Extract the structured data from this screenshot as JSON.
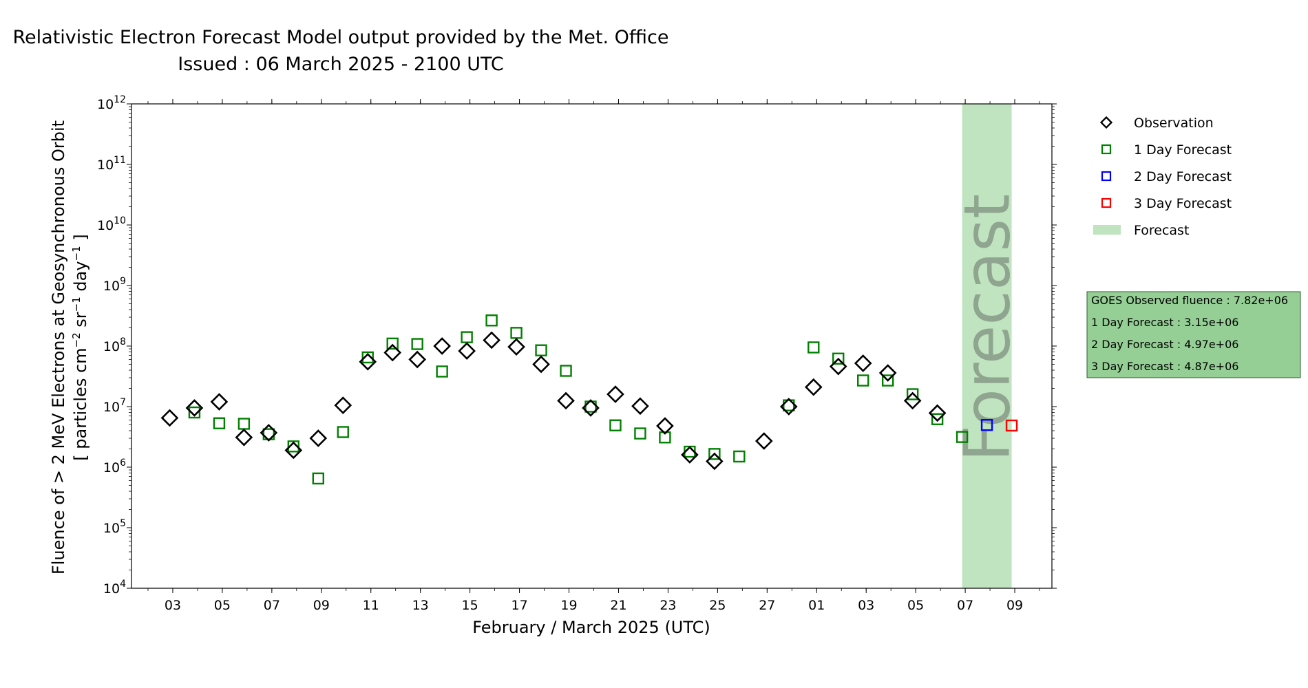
{
  "chart_data": {
    "type": "scatter",
    "title": "Relativistic Electron Forecast Model output provided by the Met. Office",
    "subtitle": "Issued : 06 March 2025 - 2100 UTC",
    "xlabel": "February / March 2025 (UTC)",
    "ylabel_line1": "Fluence of > 2 MeV Electrons at Geosynchronous Orbit",
    "ylabel_line2_parts": [
      "[ particles cm",
      "−2",
      " sr",
      "−1",
      " day",
      "−1",
      " ]"
    ],
    "y_scale": "log",
    "ylim": [
      10000,
      1000000000000
    ],
    "xlim": [
      "2025-02-01T08:00",
      "2025-03-10T12:00"
    ],
    "x_ticks": [
      {
        "date": "2025-02-03",
        "label": "03"
      },
      {
        "date": "2025-02-05",
        "label": "05"
      },
      {
        "date": "2025-02-07",
        "label": "07"
      },
      {
        "date": "2025-02-09",
        "label": "09"
      },
      {
        "date": "2025-02-11",
        "label": "11"
      },
      {
        "date": "2025-02-13",
        "label": "13"
      },
      {
        "date": "2025-02-15",
        "label": "15"
      },
      {
        "date": "2025-02-17",
        "label": "17"
      },
      {
        "date": "2025-02-19",
        "label": "19"
      },
      {
        "date": "2025-02-21",
        "label": "21"
      },
      {
        "date": "2025-02-23",
        "label": "23"
      },
      {
        "date": "2025-02-25",
        "label": "25"
      },
      {
        "date": "2025-02-27",
        "label": "27"
      },
      {
        "date": "2025-03-01",
        "label": "01"
      },
      {
        "date": "2025-03-03",
        "label": "03"
      },
      {
        "date": "2025-03-05",
        "label": "05"
      },
      {
        "date": "2025-03-07",
        "label": "07"
      },
      {
        "date": "2025-03-09",
        "label": "09"
      }
    ],
    "y_ticks": [
      {
        "value": 10000,
        "base": "10",
        "exp": "4"
      },
      {
        "value": 100000,
        "base": "10",
        "exp": "5"
      },
      {
        "value": 1000000,
        "base": "10",
        "exp": "6"
      },
      {
        "value": 10000000,
        "base": "10",
        "exp": "7"
      },
      {
        "value": 100000000,
        "base": "10",
        "exp": "8"
      },
      {
        "value": 1000000000,
        "base": "10",
        "exp": "9"
      },
      {
        "value": 10000000000,
        "base": "10",
        "exp": "10"
      },
      {
        "value": 100000000000,
        "base": "10",
        "exp": "11"
      },
      {
        "value": 1000000000000,
        "base": "10",
        "exp": "12"
      }
    ],
    "forecast_band": {
      "start": "2025-03-06T21:00",
      "end": "2025-03-08T21:00",
      "color": "#c0e4bf",
      "text": "Forecast",
      "text_color": "#8fa58f"
    },
    "series": [
      {
        "name": "Observation",
        "marker": "diamond",
        "color": "#000000",
        "points": [
          [
            "2025-02-02T21:00",
            6500000
          ],
          [
            "2025-02-03T21:00",
            9500000
          ],
          [
            "2025-02-04T21:00",
            12000000
          ],
          [
            "2025-02-05T21:00",
            3100000
          ],
          [
            "2025-02-06T21:00",
            3700000
          ],
          [
            "2025-02-07T21:00",
            1900000
          ],
          [
            "2025-02-08T21:00",
            3000000
          ],
          [
            "2025-02-09T21:00",
            10500000
          ],
          [
            "2025-02-10T21:00",
            55000000
          ],
          [
            "2025-02-11T21:00",
            78000000
          ],
          [
            "2025-02-12T21:00",
            60000000
          ],
          [
            "2025-02-13T21:00",
            100000000
          ],
          [
            "2025-02-14T21:00",
            83000000
          ],
          [
            "2025-02-15T21:00",
            125000000
          ],
          [
            "2025-02-16T21:00",
            97000000
          ],
          [
            "2025-02-17T21:00",
            50000000
          ],
          [
            "2025-02-18T21:00",
            12500000
          ],
          [
            "2025-02-19T21:00",
            9500000
          ],
          [
            "2025-02-20T21:00",
            16000000
          ],
          [
            "2025-02-21T21:00",
            10200000
          ],
          [
            "2025-02-22T21:00",
            4800000
          ],
          [
            "2025-02-23T21:00",
            1600000
          ],
          [
            "2025-02-24T21:00",
            1250000
          ],
          [
            "2025-02-26T21:00",
            2700000
          ],
          [
            "2025-02-27T21:00",
            10000000
          ],
          [
            "2025-02-28T21:00",
            21000000
          ],
          [
            "2025-03-01T21:00",
            46000000
          ],
          [
            "2025-03-02T21:00",
            52000000
          ],
          [
            "2025-03-03T21:00",
            36000000
          ],
          [
            "2025-03-04T21:00",
            12500000
          ],
          [
            "2025-03-05T21:00",
            7820000
          ]
        ]
      },
      {
        "name": "1 Day Forecast",
        "marker": "square",
        "color": "#008000",
        "points": [
          [
            "2025-02-03T21:00",
            8000000
          ],
          [
            "2025-02-04T21:00",
            5300000
          ],
          [
            "2025-02-05T21:00",
            5200000
          ],
          [
            "2025-02-06T21:00",
            3500000
          ],
          [
            "2025-02-07T21:00",
            2200000
          ],
          [
            "2025-02-08T21:00",
            650000
          ],
          [
            "2025-02-09T21:00",
            3800000
          ],
          [
            "2025-02-10T21:00",
            65000000
          ],
          [
            "2025-02-11T21:00",
            110000000
          ],
          [
            "2025-02-12T21:00",
            108000000
          ],
          [
            "2025-02-13T21:00",
            38000000
          ],
          [
            "2025-02-14T21:00",
            140000000
          ],
          [
            "2025-02-15T21:00",
            265000000
          ],
          [
            "2025-02-16T21:00",
            165000000
          ],
          [
            "2025-02-17T21:00",
            85000000
          ],
          [
            "2025-02-18T21:00",
            39000000
          ],
          [
            "2025-02-19T21:00",
            10000000
          ],
          [
            "2025-02-20T21:00",
            4900000
          ],
          [
            "2025-02-21T21:00",
            3600000
          ],
          [
            "2025-02-22T21:00",
            3100000
          ],
          [
            "2025-02-23T21:00",
            1800000
          ],
          [
            "2025-02-24T21:00",
            1650000
          ],
          [
            "2025-02-25T21:00",
            1500000
          ],
          [
            "2025-02-27T21:00",
            10500000
          ],
          [
            "2025-02-28T21:00",
            95000000
          ],
          [
            "2025-03-01T21:00",
            62000000
          ],
          [
            "2025-03-02T21:00",
            27000000
          ],
          [
            "2025-03-03T21:00",
            27000000
          ],
          [
            "2025-03-04T21:00",
            16000000
          ],
          [
            "2025-03-05T21:00",
            6200000
          ],
          [
            "2025-03-06T21:00",
            3150000
          ]
        ]
      },
      {
        "name": "2 Day Forecast",
        "marker": "square",
        "color": "#0000ff",
        "points": [
          [
            "2025-03-07T21:00",
            4970000
          ]
        ]
      },
      {
        "name": "3 Day Forecast",
        "marker": "square",
        "color": "#ff0000",
        "points": [
          [
            "2025-03-08T21:00",
            4870000
          ]
        ]
      }
    ],
    "legend": {
      "placement": "right",
      "items": [
        {
          "label": "Observation",
          "marker": "diamond",
          "color": "#000000"
        },
        {
          "label": "1 Day Forecast",
          "marker": "square",
          "color": "#008000"
        },
        {
          "label": "2 Day Forecast",
          "marker": "square",
          "color": "#0000ff"
        },
        {
          "label": "3 Day Forecast",
          "marker": "square",
          "color": "#ff0000"
        },
        {
          "label": "Forecast",
          "marker": "patch",
          "color": "#c0e4bf"
        }
      ]
    },
    "info_box": {
      "background": "#95cf95",
      "lines": [
        "GOES Observed fluence : 7.82e+06",
        "1 Day Forecast : 3.15e+06",
        "2 Day Forecast : 4.97e+06",
        "3 Day Forecast : 4.87e+06"
      ]
    }
  }
}
